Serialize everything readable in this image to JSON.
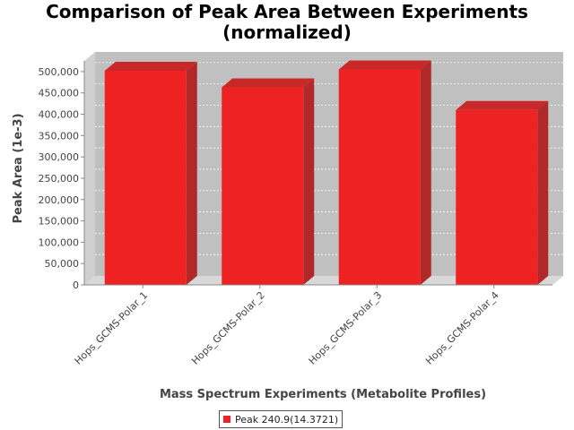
{
  "chart_data": {
    "type": "bar",
    "title": "Comparison of Peak Area Between Experiments (normalized)",
    "title_lines": [
      "Comparison of Peak Area Between Experiments",
      "(normalized)"
    ],
    "xlabel": "Mass Spectrum Experiments (Metabolite Profiles)",
    "ylabel": "Peak Area (1e-3)",
    "categories": [
      "Hops_GCMS-Polar_1",
      "Hops_GCMS-Polar_2",
      "Hops_GCMS-Polar_3",
      "Hops_GCMS-Polar_4"
    ],
    "series": [
      {
        "name": "Peak 240.9(14.3721)",
        "values": [
          502000,
          463000,
          505000,
          410000
        ]
      }
    ],
    "ylim": [
      0,
      525000
    ],
    "yticks": [
      0,
      50000,
      100000,
      150000,
      200000,
      250000,
      300000,
      350000,
      400000,
      450000,
      500000
    ],
    "grid": true,
    "legend_position": "bottom",
    "colors": {
      "bar": "#ee2222",
      "bar_top": "#c82828",
      "bar_side": "#b02828",
      "plot_bg": "#c0c0c0",
      "floor": "#d8d8d8"
    }
  }
}
